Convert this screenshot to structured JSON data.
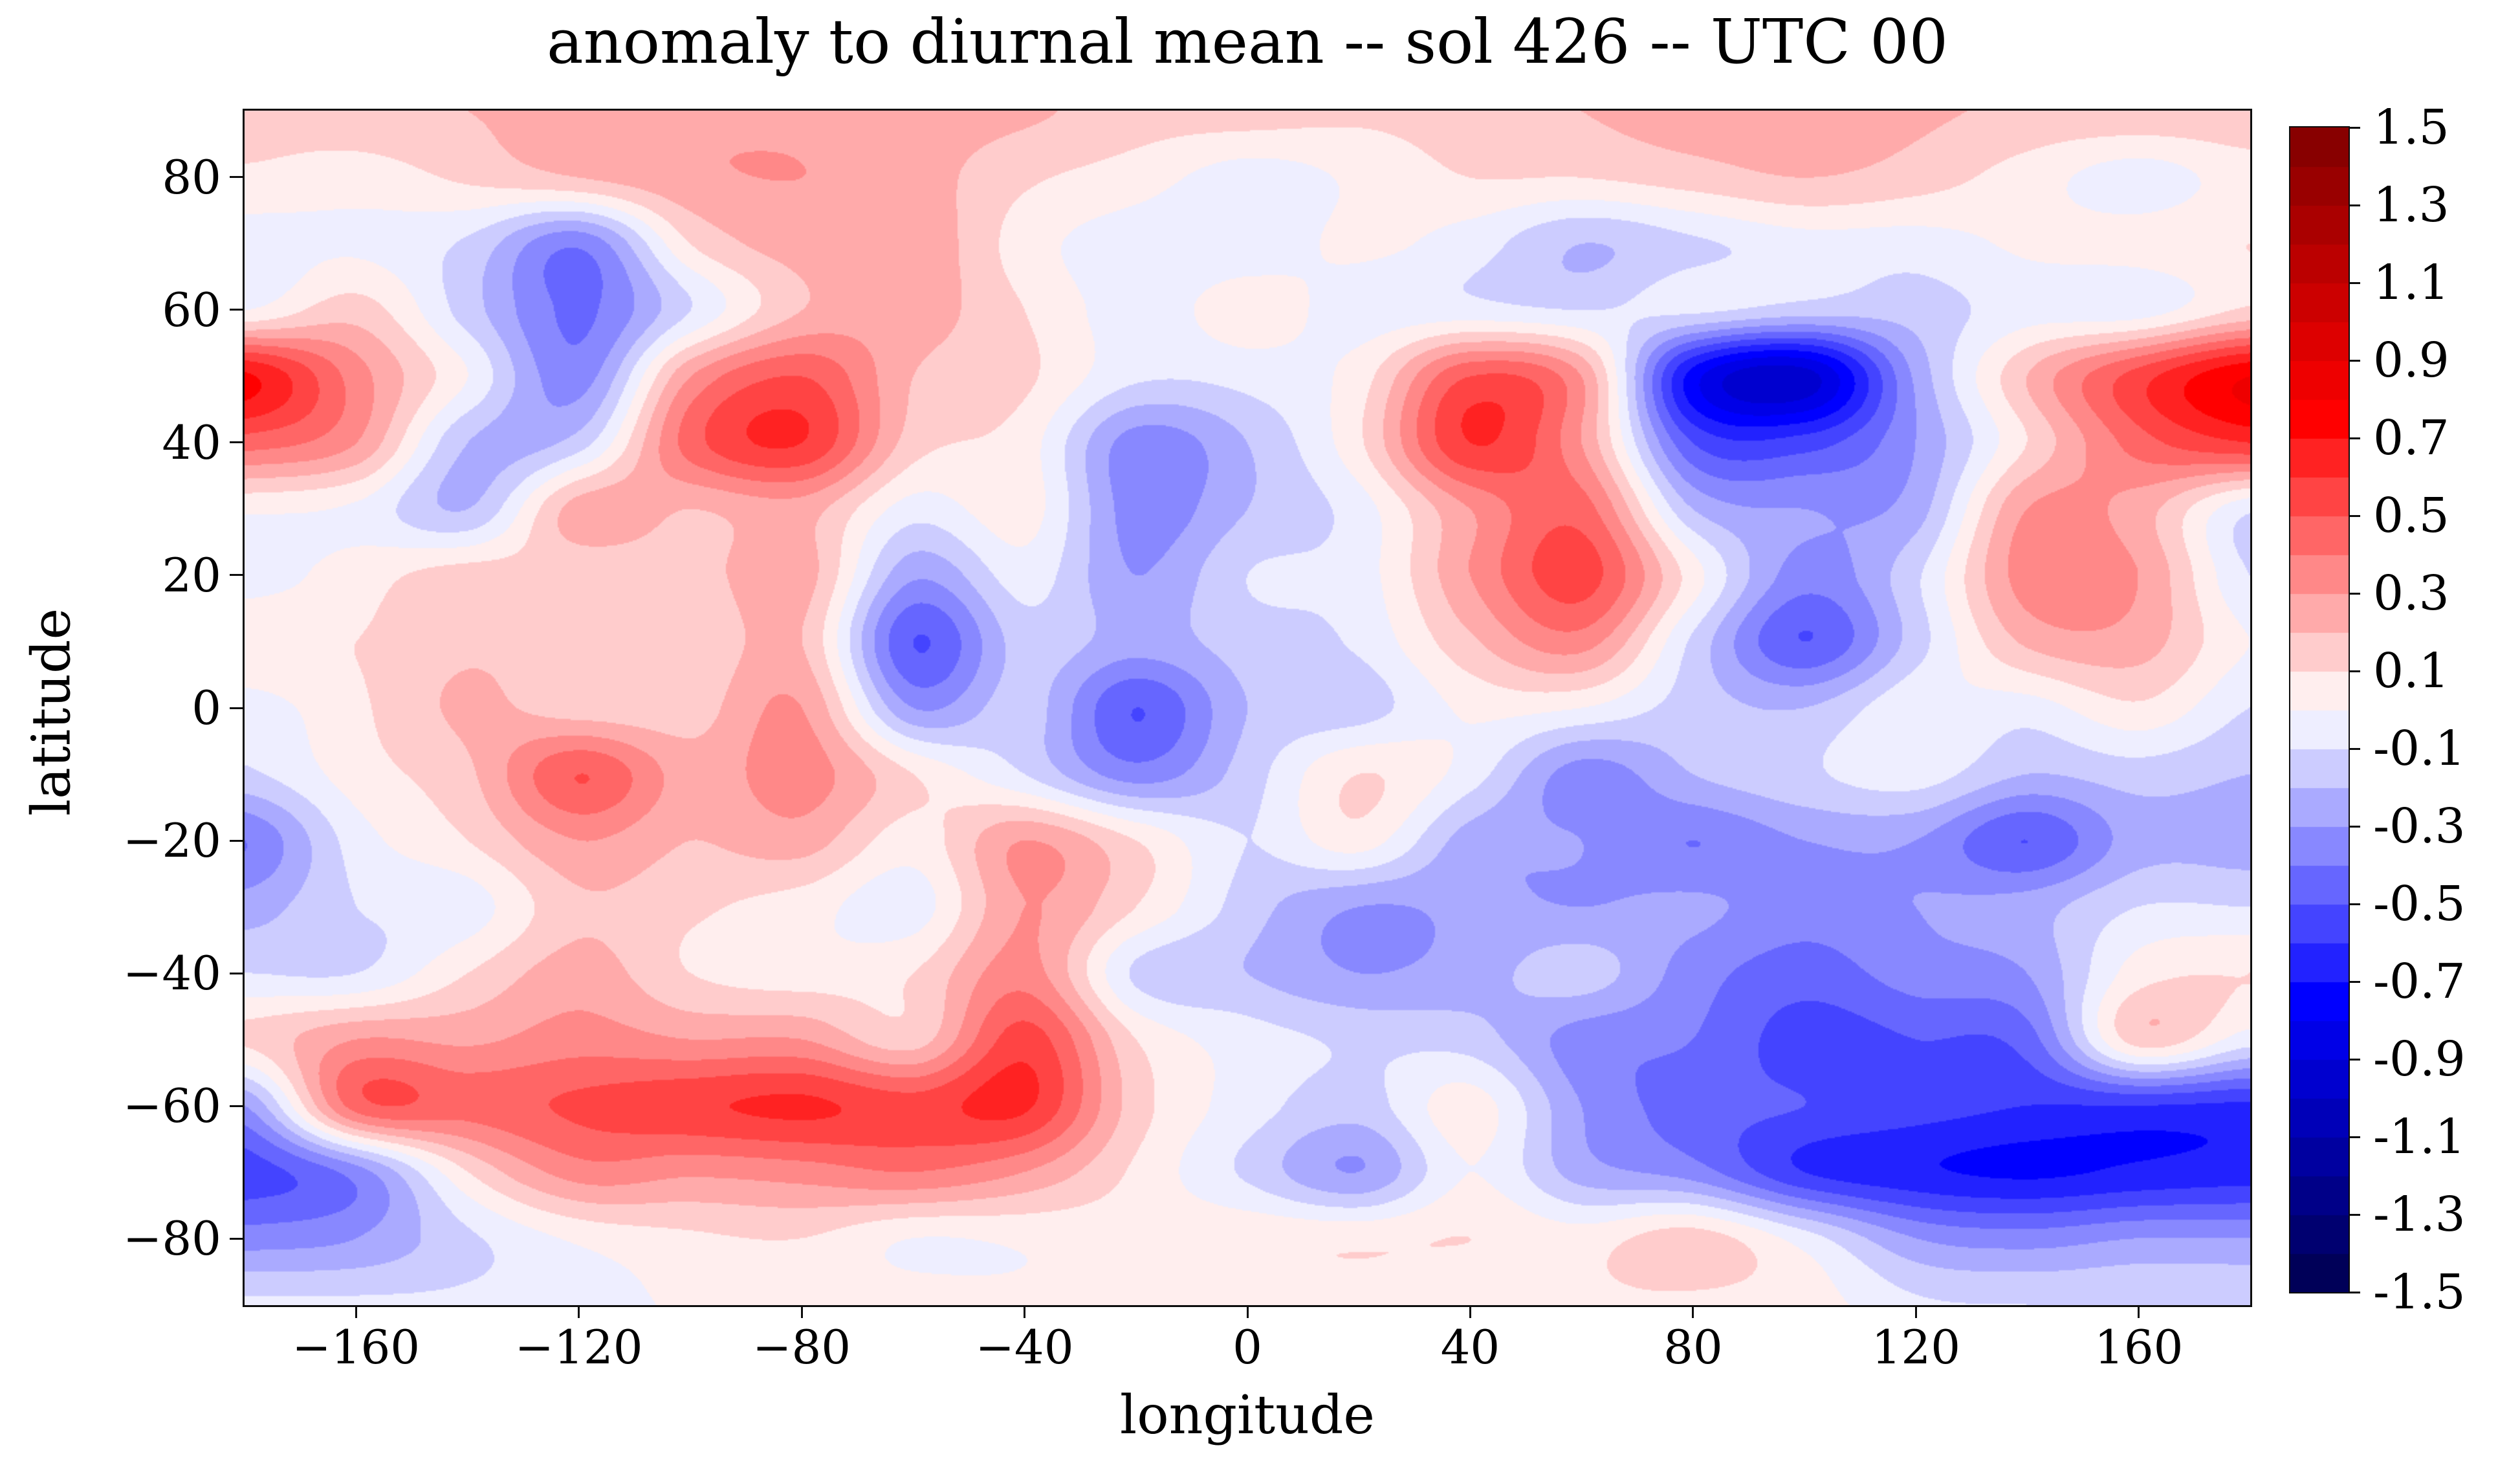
{
  "chart_data": {
    "type": "filled_contour",
    "title": "anomaly to diurnal mean -- sol 426 -- UTC 00",
    "xlabel": "longitude",
    "ylabel": "latitude",
    "xlim": [
      -180,
      180
    ],
    "ylim": [
      -90,
      90
    ],
    "x_ticks": [
      -160,
      -120,
      -80,
      -40,
      0,
      40,
      80,
      120,
      160
    ],
    "x_tick_labels": [
      "−160",
      "−120",
      "−80",
      "−40",
      "0",
      "40",
      "80",
      "120",
      "160"
    ],
    "y_ticks": [
      80,
      60,
      40,
      20,
      0,
      -20,
      -40,
      -60,
      -80
    ],
    "y_tick_labels": [
      "80",
      "60",
      "40",
      "20",
      "0",
      "−20",
      "−40",
      "−60",
      "−80"
    ],
    "colormap": "seismic",
    "levels": {
      "min": -1.5,
      "max": 1.5,
      "step": 0.1
    },
    "colorbar_tick_values": [
      1.5,
      1.3,
      1.1,
      0.9,
      0.7,
      0.5,
      0.3,
      0.1,
      -0.1,
      -0.3,
      -0.5,
      -0.7,
      -0.9,
      -1.1,
      -1.3,
      -1.5
    ],
    "colorbar_tick_labels": [
      "1.5",
      "1.3",
      "1.1",
      "0.9",
      "0.7",
      "0.5",
      "0.3",
      "0.1",
      "-0.1",
      "-0.3",
      "-0.5",
      "-0.7",
      "-0.9",
      "-1.1",
      "-1.3",
      "-1.5"
    ],
    "grid": {
      "lon": [
        -180,
        -160,
        -140,
        -120,
        -100,
        -80,
        -60,
        -40,
        -20,
        0,
        20,
        40,
        60,
        80,
        100,
        120,
        140,
        160,
        180
      ],
      "lat": [
        90,
        80,
        70,
        60,
        50,
        40,
        30,
        20,
        10,
        0,
        -10,
        -20,
        -30,
        -40,
        -50,
        -60,
        -70,
        -80,
        -90
      ],
      "values": [
        [
          0.15,
          0.17,
          0.2,
          0.25,
          0.28,
          0.28,
          0.25,
          0.22,
          0.15,
          0.15,
          0.12,
          0.15,
          0.2,
          0.25,
          0.25,
          0.22,
          0.18,
          0.18,
          0.18
        ],
        [
          0.08,
          0.05,
          0.12,
          0.2,
          0.28,
          0.3,
          0.25,
          0.12,
          0.05,
          -0.05,
          0.02,
          0.1,
          0.1,
          0.15,
          0.2,
          0.15,
          0.05,
          -0.05,
          0.05
        ],
        [
          -0.05,
          -0.02,
          -0.12,
          -0.38,
          0.1,
          0.25,
          0.28,
          0.05,
          -0.06,
          -0.06,
          0.02,
          -0.05,
          -0.2,
          -0.12,
          -0.05,
          -0.05,
          0.02,
          0.05,
          0.1
        ],
        [
          0.0,
          0.15,
          -0.15,
          -0.42,
          -0.1,
          0.2,
          0.25,
          0.1,
          -0.05,
          0.05,
          -0.05,
          -0.06,
          -0.1,
          -0.08,
          -0.15,
          -0.15,
          -0.05,
          -0.05,
          0.12
        ],
        [
          0.72,
          0.35,
          0.0,
          -0.35,
          0.3,
          0.5,
          0.2,
          0.12,
          -0.08,
          -0.06,
          0.05,
          0.5,
          0.3,
          -0.75,
          -0.95,
          -0.28,
          0.2,
          0.55,
          0.8
        ],
        [
          0.45,
          0.3,
          -0.2,
          -0.15,
          0.45,
          0.6,
          0.15,
          0.05,
          -0.35,
          -0.2,
          0.08,
          0.6,
          0.3,
          -0.5,
          -0.55,
          -0.3,
          0.1,
          0.45,
          0.6
        ],
        [
          0.02,
          -0.02,
          -0.2,
          0.25,
          0.2,
          0.25,
          -0.05,
          0.05,
          -0.35,
          -0.2,
          -0.05,
          0.3,
          0.45,
          -0.2,
          -0.3,
          -0.25,
          0.3,
          0.25,
          -0.08
        ],
        [
          -0.05,
          0.05,
          0.15,
          0.12,
          0.15,
          0.25,
          -0.28,
          -0.05,
          -0.3,
          -0.1,
          -0.05,
          0.3,
          0.55,
          0.05,
          -0.35,
          -0.12,
          0.35,
          0.3,
          -0.1
        ],
        [
          0.1,
          0.1,
          0.18,
          0.15,
          0.12,
          0.2,
          -0.5,
          -0.15,
          -0.25,
          -0.15,
          -0.08,
          0.18,
          0.35,
          -0.12,
          -0.5,
          -0.15,
          0.22,
          0.25,
          0.0
        ],
        [
          -0.05,
          0.08,
          0.22,
          0.15,
          0.15,
          0.3,
          -0.3,
          -0.15,
          -0.5,
          -0.2,
          -0.15,
          0.02,
          0.0,
          -0.15,
          -0.2,
          -0.02,
          -0.05,
          0.08,
          -0.1
        ],
        [
          -0.12,
          0.05,
          0.18,
          0.5,
          0.25,
          0.35,
          0.1,
          -0.1,
          -0.35,
          -0.15,
          0.1,
          -0.05,
          -0.35,
          -0.2,
          -0.12,
          -0.05,
          -0.2,
          -0.15,
          -0.2
        ],
        [
          -0.4,
          -0.05,
          0.1,
          0.3,
          0.2,
          0.25,
          0.05,
          0.3,
          0.1,
          -0.1,
          0.05,
          -0.25,
          -0.3,
          -0.4,
          -0.3,
          -0.3,
          -0.5,
          -0.25,
          -0.25
        ],
        [
          -0.25,
          -0.1,
          -0.05,
          0.18,
          0.12,
          0.05,
          -0.05,
          0.3,
          0.1,
          -0.15,
          -0.3,
          -0.28,
          -0.3,
          -0.28,
          -0.35,
          -0.3,
          -0.25,
          -0.1,
          -0.1
        ],
        [
          -0.1,
          -0.1,
          0.1,
          0.25,
          0.1,
          0.05,
          0.1,
          0.35,
          -0.12,
          -0.2,
          -0.3,
          -0.25,
          -0.15,
          -0.35,
          -0.45,
          -0.35,
          -0.3,
          0.05,
          0.1
        ],
        [
          0.12,
          0.3,
          0.28,
          0.35,
          0.3,
          0.3,
          0.15,
          0.55,
          0.1,
          -0.05,
          -0.12,
          -0.15,
          -0.35,
          -0.4,
          -0.55,
          -0.5,
          -0.45,
          0.15,
          -0.05
        ],
        [
          -0.3,
          0.45,
          0.45,
          0.52,
          0.58,
          0.62,
          0.55,
          0.62,
          0.15,
          -0.05,
          -0.15,
          0.05,
          -0.3,
          -0.45,
          -0.5,
          -0.55,
          -0.6,
          -0.6,
          -0.62
        ],
        [
          -0.55,
          -0.35,
          0.1,
          0.35,
          0.32,
          0.35,
          0.4,
          0.3,
          0.08,
          -0.12,
          -0.3,
          0.0,
          -0.25,
          -0.35,
          -0.6,
          -0.68,
          -0.72,
          -0.68,
          -0.65
        ],
        [
          -0.35,
          -0.3,
          -0.12,
          0.02,
          0.08,
          0.1,
          0.0,
          0.02,
          0.05,
          0.08,
          0.08,
          0.1,
          0.05,
          0.15,
          -0.05,
          -0.3,
          -0.35,
          -0.3,
          -0.3
        ],
        [
          -0.08,
          -0.08,
          -0.08,
          -0.05,
          0.02,
          0.05,
          0.05,
          0.02,
          0.05,
          0.05,
          0.05,
          0.02,
          0.08,
          0.08,
          0.05,
          -0.08,
          -0.1,
          -0.1,
          -0.1
        ]
      ]
    }
  }
}
